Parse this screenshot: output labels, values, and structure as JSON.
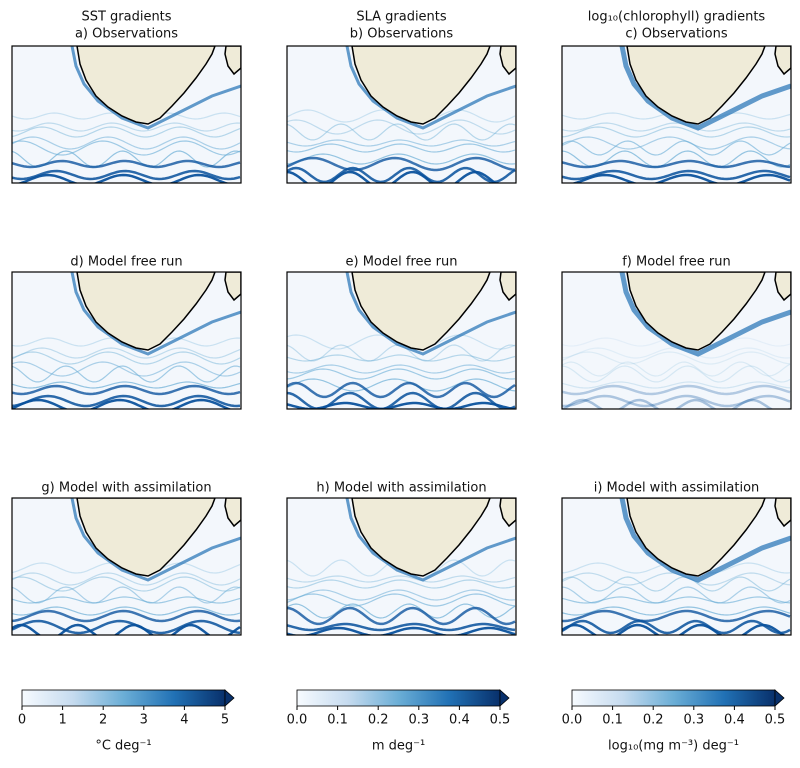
{
  "columns": [
    {
      "title": "SST gradients",
      "panels": [
        "a) Observations",
        "d) Model free run",
        "g) Model with assimilation"
      ],
      "colorbar": {
        "lim": [
          0,
          5
        ],
        "ticks": [
          0,
          1,
          2,
          3,
          4,
          5
        ],
        "label": "°C deg⁻¹"
      }
    },
    {
      "title": "SLA gradients",
      "panels": [
        "b) Observations",
        "e) Model free run",
        "h) Model with assimilation"
      ],
      "colorbar": {
        "lim": [
          0,
          0.5
        ],
        "ticks": [
          {
            "value": 0,
            "label": "0.0"
          },
          {
            "value": 0.1,
            "label": "0.1"
          },
          {
            "value": 0.2,
            "label": "0.2"
          },
          {
            "value": 0.3,
            "label": "0.3"
          },
          {
            "value": 0.4,
            "label": "0.4"
          },
          {
            "value": 0.5,
            "label": "0.5"
          }
        ],
        "label": "m deg⁻¹"
      }
    },
    {
      "title": "log₁₀(chlorophyll) gradients",
      "panels": [
        "c) Observations",
        "f) Model free run",
        "i) Model with assimilation"
      ],
      "colorbar": {
        "lim": [
          0,
          0.5
        ],
        "ticks": [
          {
            "value": 0,
            "label": "0.0"
          },
          {
            "value": 0.1,
            "label": "0.1"
          },
          {
            "value": 0.2,
            "label": "0.2"
          },
          {
            "value": 0.3,
            "label": "0.3"
          },
          {
            "value": 0.4,
            "label": "0.4"
          },
          {
            "value": 0.5,
            "label": "0.5"
          }
        ],
        "label": "log₁₀(mg m⁻³) deg⁻¹"
      }
    }
  ]
}
